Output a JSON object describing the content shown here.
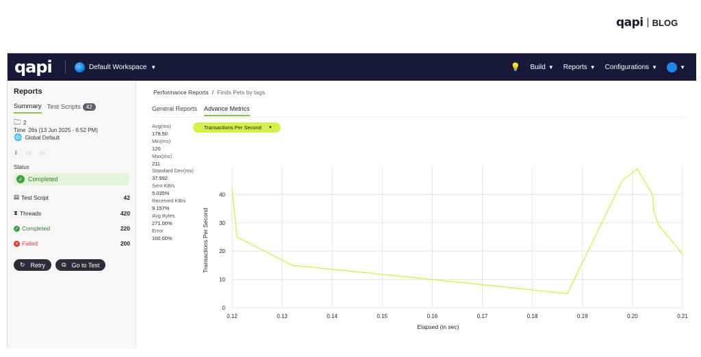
{
  "blog": {
    "logo": "qapi",
    "label": "BLOG"
  },
  "topbar": {
    "logo": "qapi",
    "workspace": "Default Workspace",
    "nav": [
      "Build",
      "Reports",
      "Configurations"
    ]
  },
  "sidebar": {
    "title": "Reports",
    "tabs": {
      "summary": "Summary",
      "test_scripts": "Test Scripts",
      "test_scripts_count": "42"
    },
    "meta": {
      "count": "2",
      "time_label": "Time",
      "time_value": "26s (13 Jun 2025 - 6:52 PM)",
      "environment": "Global Default"
    },
    "status_label": "Status",
    "status_value": "Completed",
    "stats": [
      {
        "label": "Test Script",
        "value": "42"
      },
      {
        "label": "Threads",
        "value": "420"
      },
      {
        "label": "Completed",
        "value": "220"
      },
      {
        "label": "Failed",
        "value": "200"
      }
    ],
    "actions": {
      "retry": "Retry",
      "go_to_test": "Go to Test"
    }
  },
  "main": {
    "breadcrumb": {
      "root": "Performance Reports",
      "sep": "/",
      "current": "Finds Pets by tags"
    },
    "tabs": [
      "General Reports",
      "Advance Metrics"
    ],
    "metrics": [
      {
        "label": "Avg(ms)",
        "value": "178.50"
      },
      {
        "label": "Min(ms)",
        "value": "120"
      },
      {
        "label": "Max(ms)",
        "value": "211"
      },
      {
        "label": "Standard Dev(ms)",
        "value": "37.992"
      },
      {
        "label": "Sent KB/s",
        "value": "5.035%"
      },
      {
        "label": "Received KB/s",
        "value": "9.157%"
      },
      {
        "label": "Avg Bytes",
        "value": "271.00%"
      },
      {
        "label": "Error",
        "value": "100.00%"
      }
    ],
    "metric_select": "Transactions Per Second"
  },
  "colors": {
    "accent": "#8bc34a",
    "line": "#d4ed3a",
    "topbar": "#181838"
  },
  "chart_data": {
    "type": "line",
    "xlabel": "Elapsed (in sec)",
    "ylabel": "Transactions Per Second",
    "xlim": [
      0.12,
      0.21
    ],
    "ylim": [
      0,
      50
    ],
    "xticks": [
      "0.12",
      "0.13",
      "0.14",
      "0.15",
      "0.16",
      "0.17",
      "0.18",
      "0.19",
      "0.20",
      "0.21"
    ],
    "yticks": [
      "0",
      "10",
      "20",
      "30",
      "40"
    ],
    "grid": true,
    "series": [
      {
        "x": [
          0.12,
          0.121,
          0.132,
          0.16,
          0.187,
          0.198,
          0.201,
          0.204,
          0.2043,
          0.2053,
          0.21
        ],
        "y": [
          42,
          25,
          15,
          10,
          5,
          45,
          49,
          40,
          34,
          29,
          19
        ]
      }
    ]
  }
}
